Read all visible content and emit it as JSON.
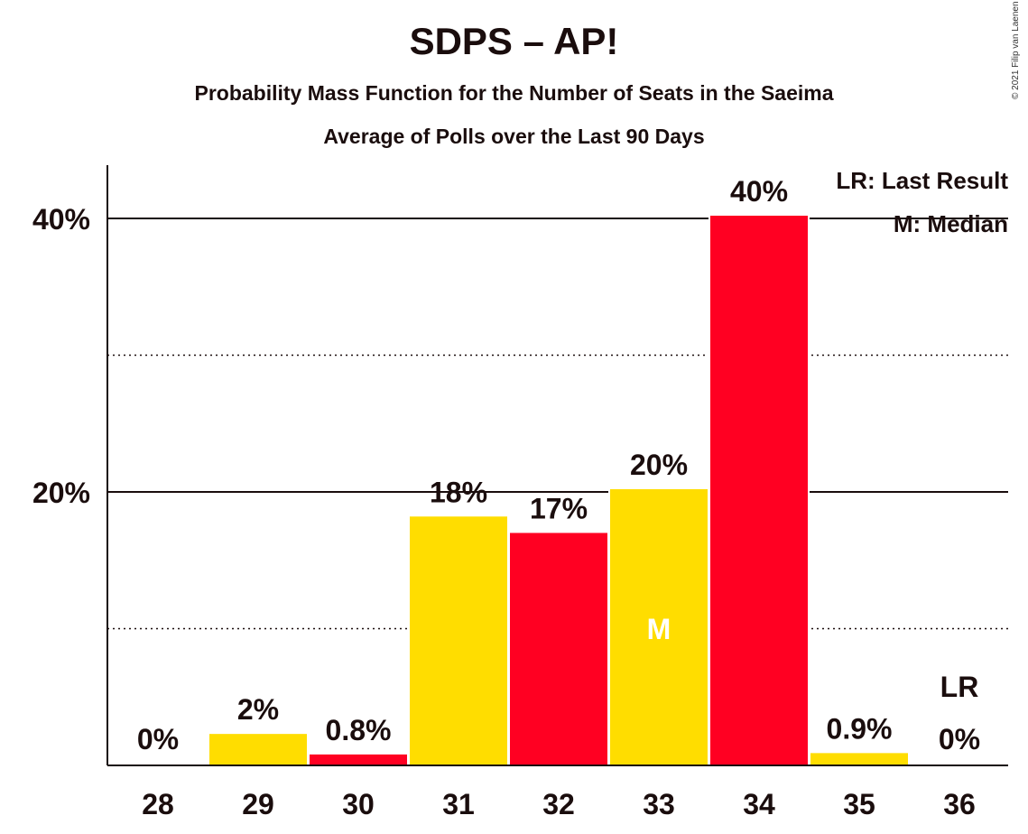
{
  "header": {
    "title": "SDPS – AP!",
    "subtitle1": "Probability Mass Function for the Number of Seats in the Saeima",
    "subtitle2": "Average of Polls over the Last 90 Days",
    "copyright": "© 2021 Filip van Laenen"
  },
  "legend": {
    "last_result": "LR: Last Result",
    "median": "M: Median"
  },
  "colors": {
    "yellow": "#FFDD00",
    "red": "#FF0022",
    "text": "#1a0d0d"
  },
  "chart_data": {
    "type": "bar",
    "categories": [
      "28",
      "29",
      "30",
      "31",
      "32",
      "33",
      "34",
      "35",
      "36"
    ],
    "values": [
      0,
      2.3,
      0.8,
      18.2,
      17.0,
      20.2,
      40.2,
      0.9,
      0
    ],
    "value_labels": [
      "0%",
      "2%",
      "0.8%",
      "18%",
      "17%",
      "20%",
      "40%",
      "0.9%",
      "0%"
    ],
    "bar_colors": [
      "yellow",
      "yellow",
      "red",
      "yellow",
      "red",
      "yellow",
      "red",
      "yellow",
      "yellow"
    ],
    "y_tick_labels": [
      "20%",
      "40%"
    ],
    "y_ticks": [
      20,
      40
    ],
    "y_minor_ticks": [
      10,
      30
    ],
    "ylim": [
      0,
      40.2
    ],
    "median_category": "33",
    "median_marker": "M",
    "last_result_category": "36",
    "last_result_marker": "LR",
    "legend_position": "top-right"
  }
}
